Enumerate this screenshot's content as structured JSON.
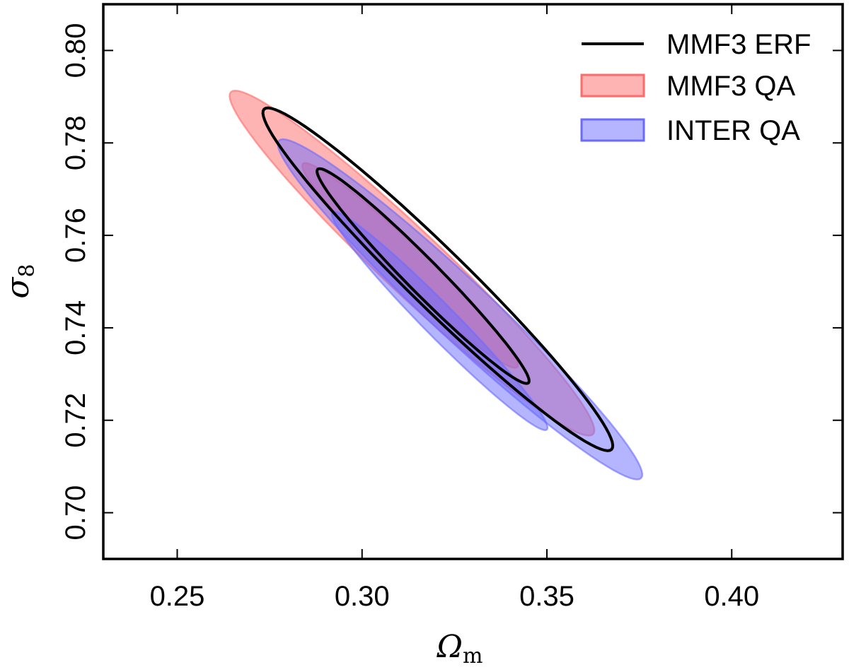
{
  "chart_data": {
    "type": "contour",
    "title": "",
    "xlabel": {
      "main": "Ω",
      "sub": "m"
    },
    "ylabel": {
      "main": "σ",
      "sub": "8"
    },
    "xlim": [
      0.23,
      0.43
    ],
    "ylim": [
      0.69,
      0.81
    ],
    "xticks": [
      0.25,
      0.3,
      0.35,
      0.4
    ],
    "xtick_labels": [
      "0.25",
      "0.30",
      "0.35",
      "0.40"
    ],
    "yticks": [
      0.7,
      0.72,
      0.74,
      0.76,
      0.78,
      0.8
    ],
    "ytick_labels": [
      "0.70",
      "0.72",
      "0.74",
      "0.76",
      "0.78",
      "0.80"
    ],
    "legend_position": "top-right",
    "series": [
      {
        "name": "MMF3 ERF",
        "style": "line",
        "color": "#000000",
        "contours": [
          {
            "level": "68%",
            "center": [
              0.3165,
              0.7512
            ],
            "dir": [
              -0.0285,
              0.0231
            ],
            "width": 0.0045
          },
          {
            "level": "95%",
            "center": [
              0.3205,
              0.7505
            ],
            "dir": [
              -0.047,
              0.0368
            ],
            "width": 0.0079
          }
        ]
      },
      {
        "name": "MMF3 QA",
        "style": "fill",
        "color": "#ff6a6a",
        "contours": [
          {
            "level": "68%",
            "center": [
              0.313,
              0.7535
            ],
            "dir": [
              -0.029,
              0.022
            ],
            "width": 0.0047
          },
          {
            "level": "95%",
            "center": [
              0.3135,
              0.754
            ],
            "dir": [
              -0.049,
              0.037
            ],
            "width": 0.0084
          }
        ]
      },
      {
        "name": "INTER QA",
        "style": "fill",
        "color": "#6a6aff",
        "contours": [
          {
            "level": "68%",
            "center": [
              0.321,
              0.7415
            ],
            "dir": [
              -0.029,
              0.0235
            ],
            "width": 0.0044
          },
          {
            "level": "95%",
            "center": [
              0.3265,
              0.744
            ],
            "dir": [
              -0.049,
              0.0365
            ],
            "width": 0.008
          }
        ]
      }
    ]
  }
}
